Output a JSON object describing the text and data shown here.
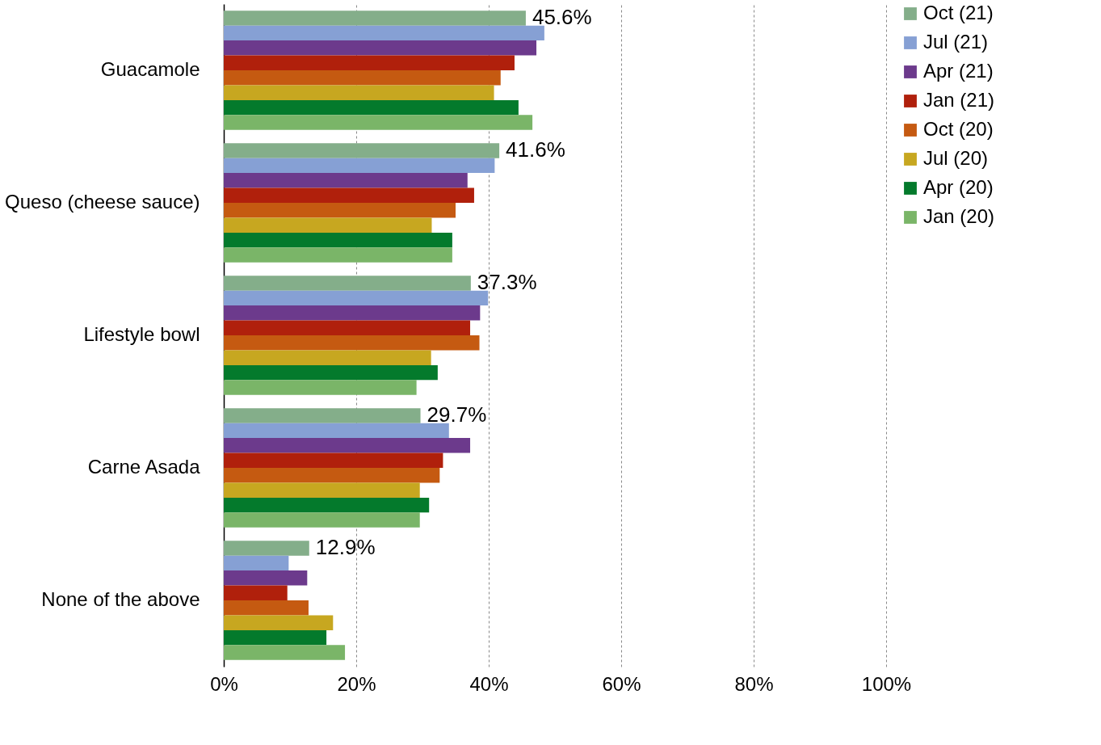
{
  "chart_data": {
    "type": "bar",
    "orientation": "horizontal",
    "categories": [
      "Guacamole",
      "Queso (cheese sauce)",
      "Lifestyle bowl",
      "Carne Asada",
      "None of the above"
    ],
    "series": [
      {
        "name": "Oct (21)",
        "color": "#84ae8a",
        "values": [
          45.6,
          41.6,
          37.3,
          29.7,
          12.9
        ],
        "value_labels": [
          "45.6%",
          "41.6%",
          "37.3%",
          "29.7%",
          "12.9%"
        ]
      },
      {
        "name": "Jul (21)",
        "color": "#86a0d4",
        "values": [
          48.4,
          40.9,
          39.9,
          34.0,
          9.8
        ]
      },
      {
        "name": "Apr (21)",
        "color": "#6c3a8c",
        "values": [
          47.2,
          36.8,
          38.7,
          37.2,
          12.6
        ]
      },
      {
        "name": "Jan (21)",
        "color": "#b0200c",
        "values": [
          43.9,
          37.8,
          37.2,
          33.1,
          9.6
        ]
      },
      {
        "name": "Oct (20)",
        "color": "#c55a11",
        "values": [
          41.8,
          35.0,
          38.6,
          32.6,
          12.8
        ]
      },
      {
        "name": "Jul (20)",
        "color": "#c7a720",
        "values": [
          40.8,
          31.4,
          31.3,
          29.6,
          16.5
        ]
      },
      {
        "name": "Apr (20)",
        "color": "#047a2c",
        "values": [
          44.5,
          34.5,
          32.3,
          31.0,
          15.5
        ]
      },
      {
        "name": "Jan (20)",
        "color": "#7ab568",
        "values": [
          46.6,
          34.5,
          29.1,
          29.6,
          18.3
        ]
      }
    ],
    "xlim": [
      0,
      100
    ],
    "xticks": [
      {
        "value": 0,
        "label": "0%"
      },
      {
        "value": 20,
        "label": "20%"
      },
      {
        "value": 40,
        "label": "40%"
      },
      {
        "value": 60,
        "label": "60%"
      },
      {
        "value": 80,
        "label": "80%"
      },
      {
        "value": 100,
        "label": "100%"
      }
    ],
    "grid": "x",
    "legend": "right"
  }
}
